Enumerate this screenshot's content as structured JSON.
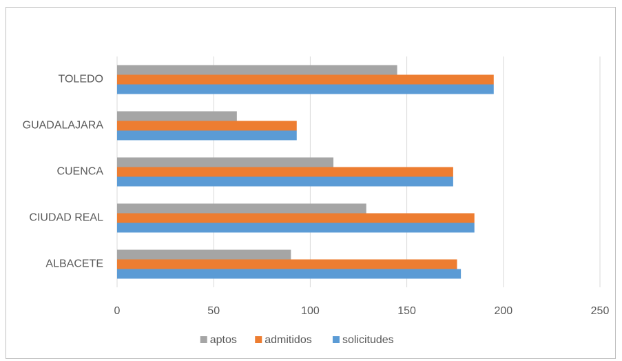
{
  "chart_data": {
    "type": "barh",
    "categories": [
      "ALBACETE",
      "CIUDAD REAL",
      "CUENCA",
      "GUADALAJARA",
      "TOLEDO"
    ],
    "series": [
      {
        "name": "solicitudes",
        "color": "#5b9bd5",
        "values": [
          178,
          185,
          174,
          93,
          195
        ]
      },
      {
        "name": "admitidos",
        "color": "#ed7d31",
        "values": [
          176,
          185,
          174,
          93,
          195
        ]
      },
      {
        "name": "aptos",
        "color": "#a5a5a5",
        "values": [
          90,
          129,
          112,
          62,
          145
        ]
      }
    ],
    "xlim": [
      0,
      250
    ],
    "xticks": [
      0,
      50,
      100,
      150,
      200,
      250
    ],
    "grid": true,
    "legend": "bottom"
  }
}
